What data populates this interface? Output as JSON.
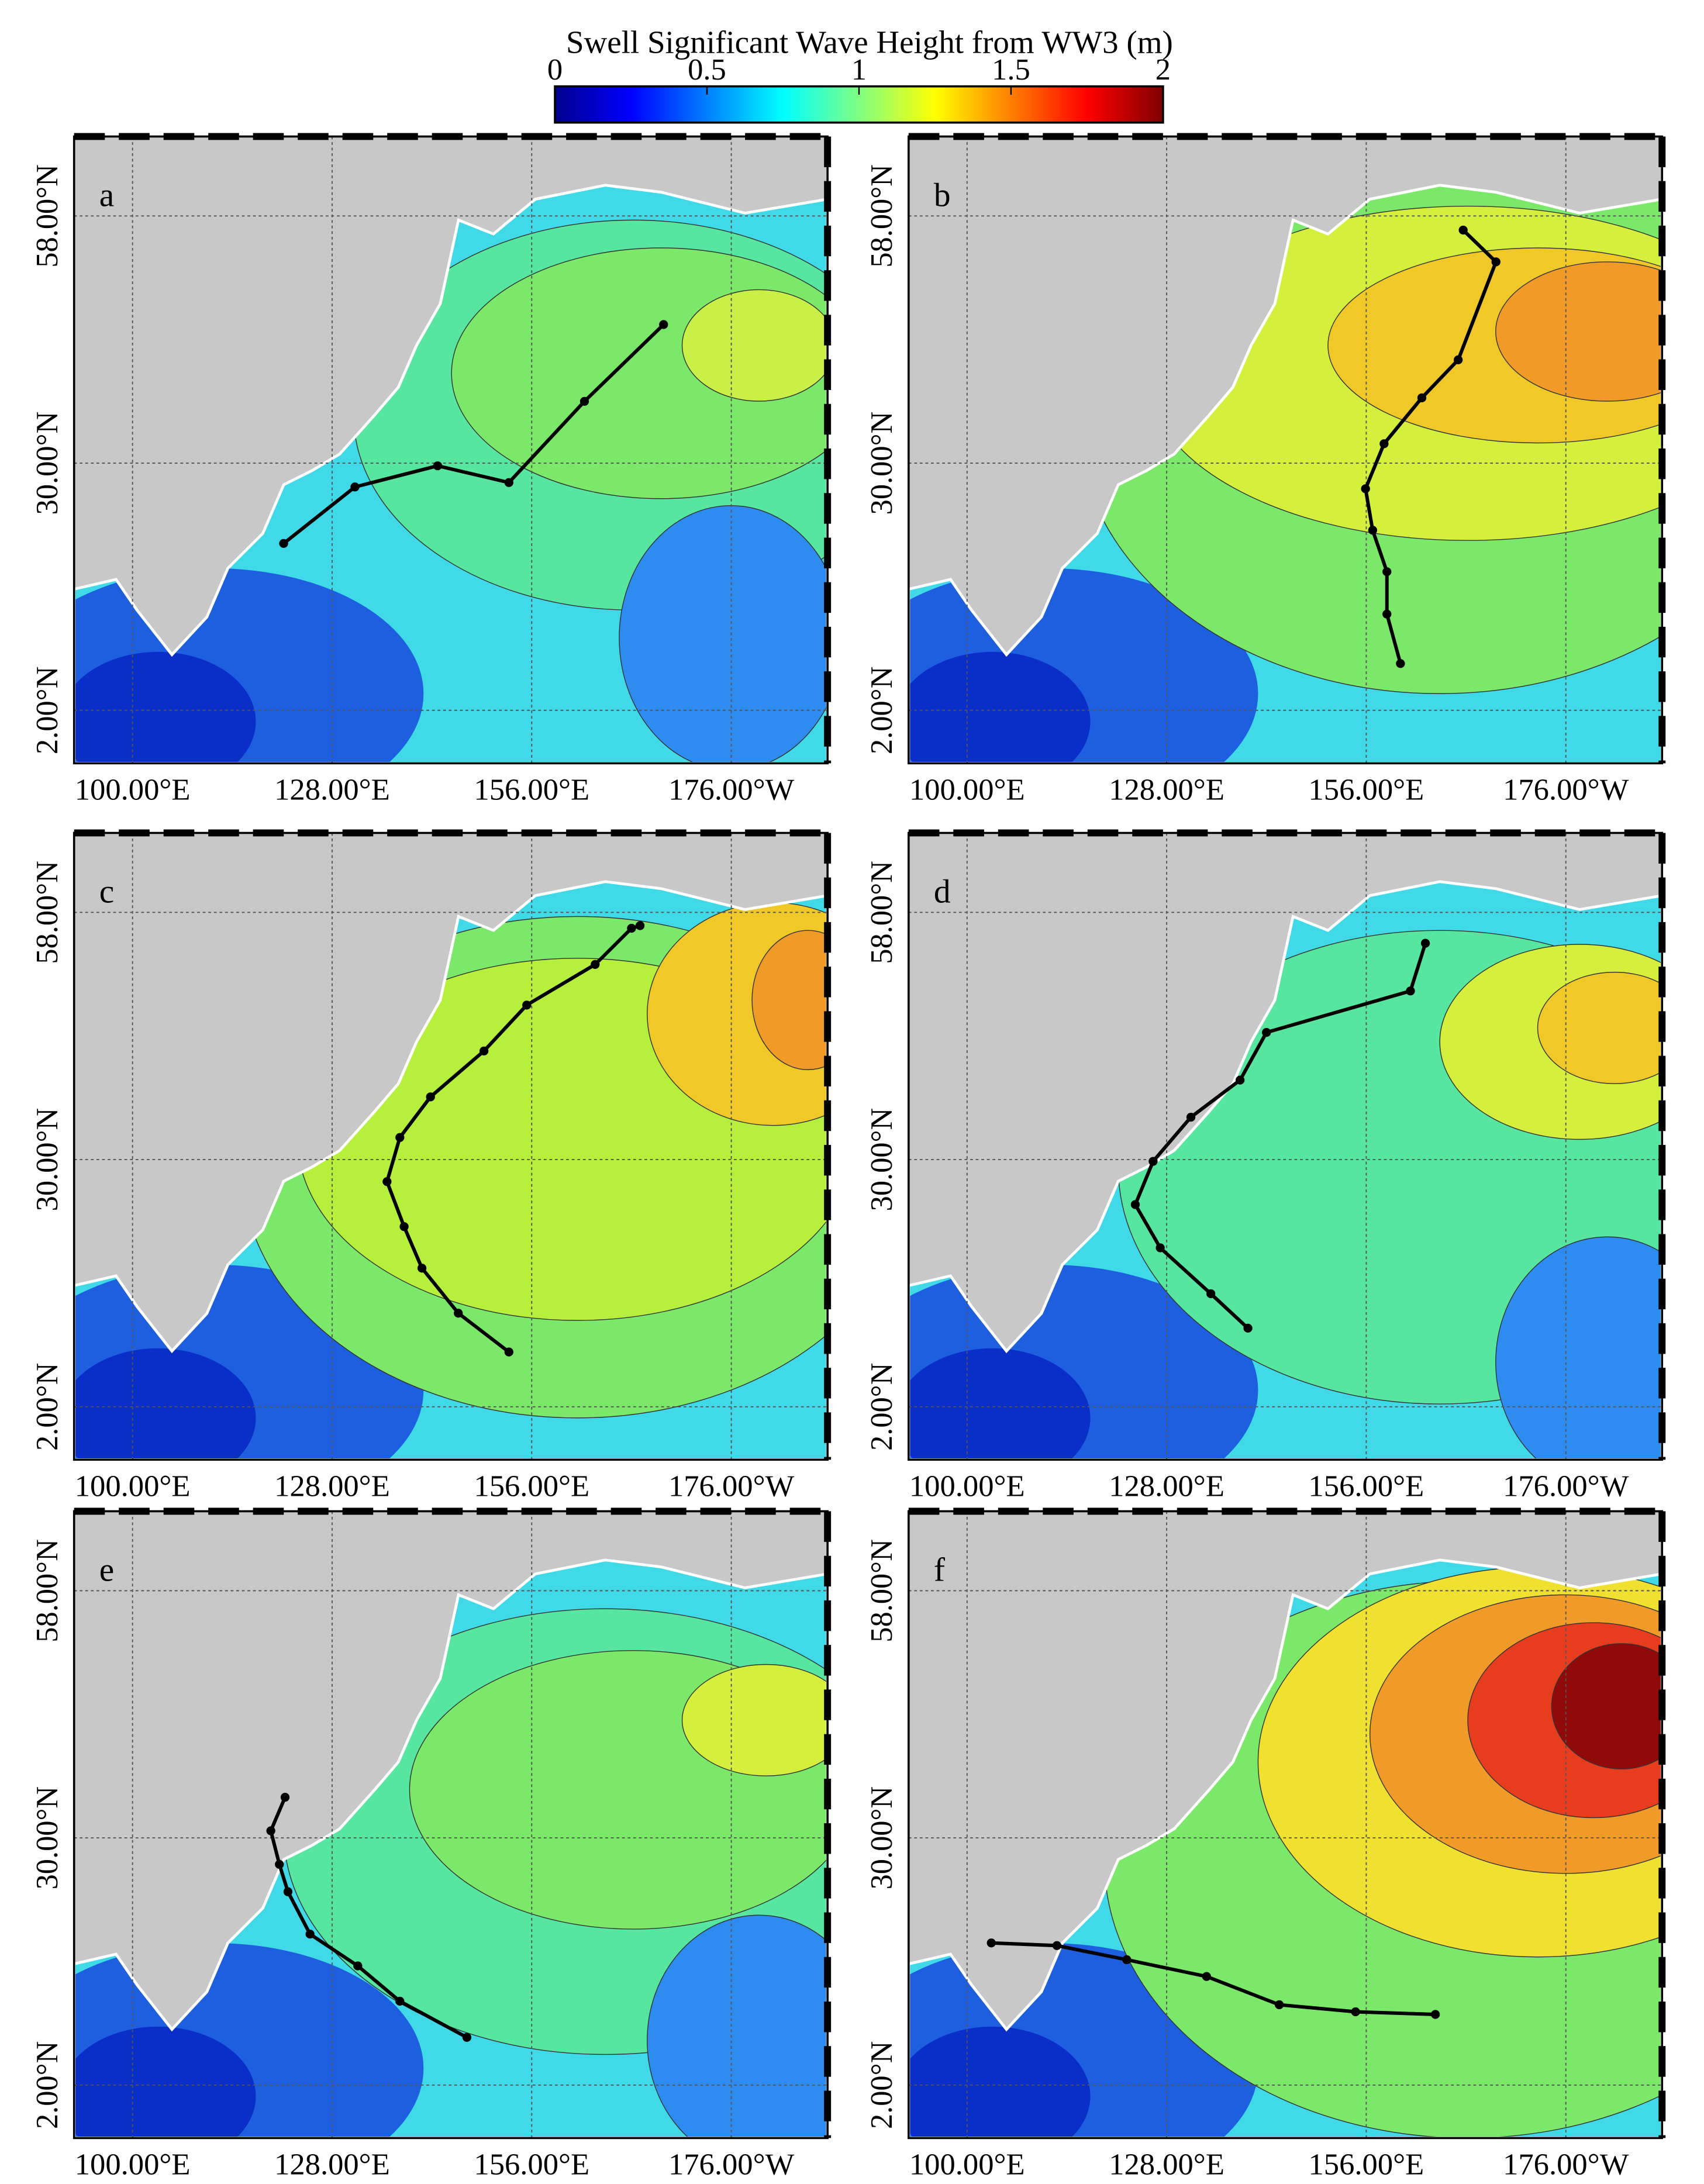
{
  "title": "Swell Significant Wave Height from WW3 (m)",
  "colorbar": {
    "lim": [
      0,
      2
    ],
    "ticks": [
      0,
      0.5,
      1,
      1.5,
      2
    ]
  },
  "map": {
    "lonlim": [
      91.8,
      197.5
    ],
    "latlim": [
      -4,
      67
    ],
    "lonticks": [
      {
        "value": 100,
        "label": "100.00°E"
      },
      {
        "value": 128,
        "label": "128.00°E"
      },
      {
        "value": 156,
        "label": "156.00°E"
      },
      {
        "value": 184,
        "label": "176.00°W"
      }
    ],
    "latticks": [
      {
        "value": 58,
        "label": "58.00°N"
      },
      {
        "value": 30,
        "label": "30.00°N"
      },
      {
        "value": 2,
        "label": "2.00°N"
      }
    ],
    "grid": true
  },
  "panels": [
    {
      "label": "a",
      "track": {
        "lon": [
          121.2,
          131.2,
          142.8,
          152.8,
          163.4,
          174.5
        ],
        "lat": [
          20.9,
          27.3,
          29.7,
          27.8,
          37.0,
          45.7
        ]
      }
    },
    {
      "label": "b",
      "track": {
        "lon": [
          160.8,
          158.9,
          158.9,
          156.9,
          155.9,
          158.5,
          163.8,
          168.9,
          174.2,
          169.6
        ],
        "lat": [
          7.3,
          12.9,
          17.7,
          22.4,
          27.1,
          32.2,
          37.4,
          41.7,
          52.8,
          56.4
        ]
      }
    },
    {
      "label": "c",
      "track": {
        "lon": [
          152.8,
          145.7,
          140.6,
          138.1,
          135.7,
          137.5,
          141.8,
          149.3,
          155.3,
          164.9,
          170.0,
          171.2
        ],
        "lat": [
          8.2,
          12.6,
          17.7,
          22.4,
          27.5,
          32.5,
          37.1,
          42.3,
          47.5,
          52.1,
          56.2,
          56.5
        ]
      }
    },
    {
      "label": "d",
      "track": {
        "lon": [
          139.4,
          134.2,
          127.1,
          123.6,
          126.1,
          131.4,
          138.3,
          142.0,
          162.2,
          164.3
        ],
        "lat": [
          10.9,
          14.8,
          20.0,
          24.9,
          29.8,
          34.8,
          39.0,
          44.4,
          49.1,
          54.5
        ]
      }
    },
    {
      "label": "e",
      "track": {
        "lon": [
          146.9,
          137.5,
          131.6,
          124.9,
          121.8,
          120.6,
          119.4,
          121.4
        ],
        "lat": [
          7.4,
          11.5,
          15.5,
          19.1,
          23.9,
          27.0,
          30.8,
          34.6
        ]
      }
    },
    {
      "label": "f",
      "track": {
        "lon": [
          165.7,
          154.5,
          143.8,
          133.6,
          122.4,
          112.6,
          103.4
        ],
        "lat": [
          10.0,
          10.3,
          11.1,
          14.3,
          16.2,
          17.8,
          18.1
        ]
      }
    }
  ]
}
